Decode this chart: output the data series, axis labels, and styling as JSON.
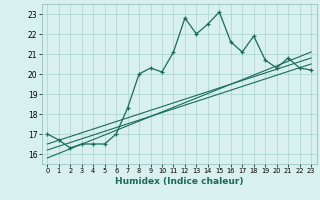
{
  "xlabel": "Humidex (Indice chaleur)",
  "bg_color": "#d8f0ee",
  "line_color": "#1a6b5a",
  "xlim": [
    -0.5,
    23.5
  ],
  "ylim": [
    15.5,
    23.5
  ],
  "xticks": [
    0,
    1,
    2,
    3,
    4,
    5,
    6,
    7,
    8,
    9,
    10,
    11,
    12,
    13,
    14,
    15,
    16,
    17,
    18,
    19,
    20,
    21,
    22,
    23
  ],
  "yticks": [
    16,
    17,
    18,
    19,
    20,
    21,
    22,
    23
  ],
  "grid_color": "#b0d8d4",
  "line1_x": [
    0,
    1,
    2,
    3,
    4,
    5,
    6,
    7,
    8,
    9,
    10,
    11,
    12,
    13,
    14,
    15,
    16,
    17,
    18,
    19,
    20,
    21,
    22,
    23
  ],
  "line1_y": [
    17.0,
    16.7,
    16.3,
    16.5,
    16.5,
    16.5,
    17.0,
    18.3,
    20.0,
    20.3,
    20.1,
    21.1,
    22.8,
    22.0,
    22.5,
    23.1,
    21.6,
    21.1,
    21.9,
    20.7,
    20.3,
    20.8,
    20.3,
    20.2
  ],
  "line2_x": [
    0,
    23
  ],
  "line2_y": [
    16.5,
    20.8
  ],
  "line3_x": [
    0,
    23
  ],
  "line3_y": [
    16.2,
    20.5
  ],
  "line4_x": [
    0,
    23
  ],
  "line4_y": [
    15.8,
    21.1
  ]
}
